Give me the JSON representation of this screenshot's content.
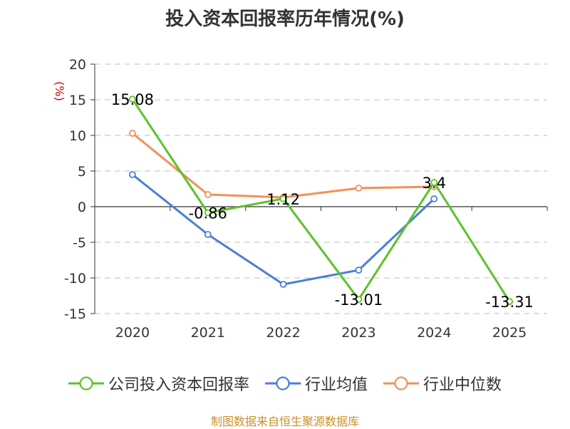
{
  "chart_data": {
    "type": "line",
    "title": "投入资本回报率历年情况(%)",
    "ylabel": "(%)",
    "xlabel": "",
    "categories": [
      "2020",
      "2021",
      "2022",
      "2023",
      "2024",
      "2025"
    ],
    "ylim": [
      -15,
      20
    ],
    "yticks": [
      20,
      15,
      10,
      5,
      0,
      -5,
      -10,
      -15
    ],
    "grid": "horizontal-dashed",
    "legend_position": "bottom",
    "series": [
      {
        "name": "公司投入资本回报率",
        "color": "#5cc22a",
        "values": [
          15.08,
          -0.86,
          1.12,
          -13.01,
          3.4,
          -13.31
        ],
        "data_labels": [
          "15.08",
          "-0.86",
          "1.12",
          "-13.01",
          "3.4",
          "-13.31"
        ]
      },
      {
        "name": "行业均值",
        "color": "#4a7fd9",
        "values": [
          4.5,
          -3.9,
          -10.9,
          -8.9,
          1.1,
          null
        ]
      },
      {
        "name": "行业中位数",
        "color": "#f2905a",
        "values": [
          10.3,
          1.7,
          1.3,
          2.6,
          2.8,
          null
        ]
      }
    ]
  },
  "source": "制图数据来自恒生聚源数据库"
}
